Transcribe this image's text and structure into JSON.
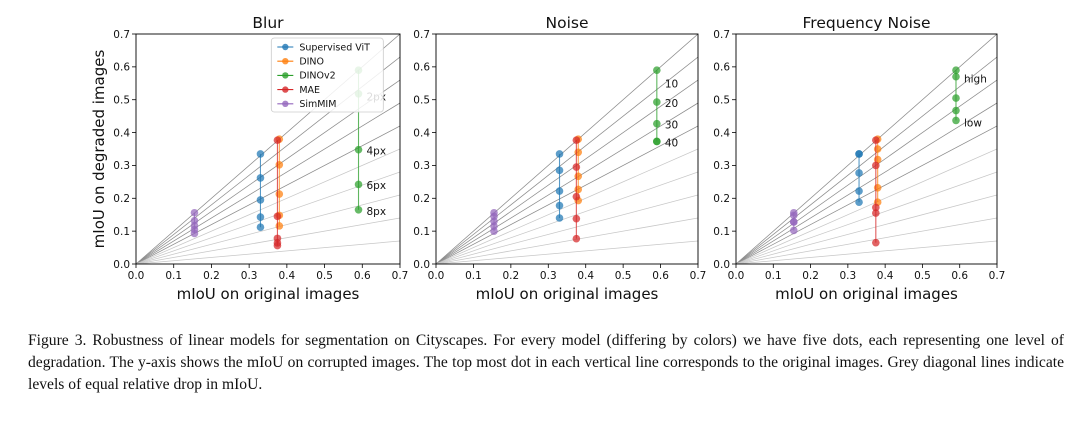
{
  "chart_data": {
    "type": "scatter",
    "ylabel": "mIoU on degraded images",
    "xlabel": "mIoU on original images",
    "xlim": [
      0.0,
      0.7
    ],
    "ylim": [
      0.0,
      0.7
    ],
    "ticks": [
      "0.0",
      "0.1",
      "0.2",
      "0.3",
      "0.4",
      "0.5",
      "0.6",
      "0.7"
    ],
    "tick_values": [
      0.0,
      0.1,
      0.2,
      0.3,
      0.4,
      0.5,
      0.6,
      0.7
    ],
    "reference_line_slopes": [
      1.0,
      0.9,
      0.8,
      0.7,
      0.6,
      0.5,
      0.4,
      0.3,
      0.2,
      0.1
    ],
    "legend": [
      {
        "name": "Supervised ViT",
        "color": "#1f77b4"
      },
      {
        "name": "DINO",
        "color": "#ff7f0e"
      },
      {
        "name": "DINOv2",
        "color": "#2ca02c"
      },
      {
        "name": "MAE",
        "color": "#d62728"
      },
      {
        "name": "SimMIM",
        "color": "#9467bd"
      }
    ],
    "panels": [
      {
        "title": "Blur",
        "series": [
          {
            "name": "Supervised ViT",
            "x": 0.33,
            "y": [
              0.335,
              0.262,
              0.195,
              0.143,
              0.112
            ]
          },
          {
            "name": "DINO",
            "x": 0.38,
            "y": [
              0.38,
              0.302,
              0.213,
              0.148,
              0.116
            ]
          },
          {
            "name": "DINOv2",
            "x": 0.59,
            "y": [
              0.59,
              0.518,
              0.348,
              0.242,
              0.165
            ]
          },
          {
            "name": "MAE",
            "x": 0.375,
            "y": [
              0.377,
              0.145,
              0.078,
              0.064,
              0.056
            ]
          },
          {
            "name": "SimMIM",
            "x": 0.155,
            "y": [
              0.156,
              0.132,
              0.117,
              0.105,
              0.093
            ]
          }
        ],
        "annotations": [
          "2px",
          "4px",
          "6px",
          "8px"
        ],
        "annotation_y": [
          0.51,
          0.345,
          0.24,
          0.162
        ]
      },
      {
        "title": "Noise",
        "series": [
          {
            "name": "Supervised ViT",
            "x": 0.33,
            "y": [
              0.335,
              0.285,
              0.222,
              0.178,
              0.14
            ]
          },
          {
            "name": "DINO",
            "x": 0.38,
            "y": [
              0.38,
              0.34,
              0.267,
              0.227,
              0.193
            ]
          },
          {
            "name": "DINOv2",
            "x": 0.59,
            "y": [
              0.59,
              0.493,
              0.427,
              0.373,
              0.373
            ]
          },
          {
            "name": "MAE",
            "x": 0.375,
            "y": [
              0.377,
              0.295,
              0.205,
              0.138,
              0.077
            ]
          },
          {
            "name": "SimMIM",
            "x": 0.155,
            "y": [
              0.156,
              0.145,
              0.13,
              0.115,
              0.1
            ]
          }
        ],
        "annotations": [
          "10",
          "20",
          "30",
          "40"
        ],
        "annotation_y": [
          0.55,
          0.49,
          0.425,
          0.37
        ]
      },
      {
        "title": "Frequency Noise",
        "series": [
          {
            "name": "Supervised ViT",
            "x": 0.33,
            "y": [
              0.335,
              0.335,
              0.277,
              0.222,
              0.188
            ]
          },
          {
            "name": "DINO",
            "x": 0.38,
            "y": [
              0.38,
              0.35,
              0.318,
              0.232,
              0.188
            ]
          },
          {
            "name": "DINOv2",
            "x": 0.59,
            "y": [
              0.59,
              0.57,
              0.505,
              0.467,
              0.437
            ]
          },
          {
            "name": "MAE",
            "x": 0.375,
            "y": [
              0.377,
              0.3,
              0.172,
              0.155,
              0.065
            ]
          },
          {
            "name": "SimMIM",
            "x": 0.155,
            "y": [
              0.156,
              0.148,
              0.128,
              0.128,
              0.102
            ]
          }
        ],
        "annotations": [
          "high",
          "low"
        ],
        "annotation_y": [
          0.565,
          0.43
        ]
      }
    ]
  },
  "caption": {
    "label": "Figure 3.",
    "text": "Robustness of linear models for segmentation on Cityscapes. For every model (differing by colors) we have five dots, each representing one level of degradation. The y-axis shows the mIoU on corrupted images. The top most dot in each vertical line corresponds to the original images. Grey diagonal lines indicate levels of equal relative drop in mIoU."
  }
}
